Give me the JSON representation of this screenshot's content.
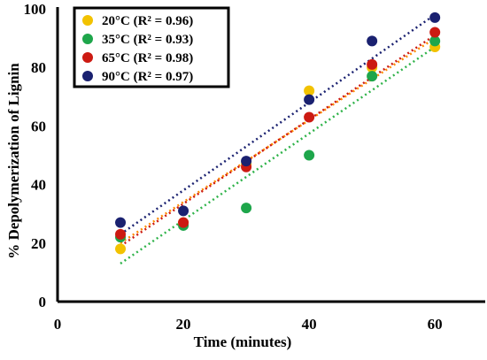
{
  "chart_data": {
    "type": "scatter",
    "xlabel": "Time (minutes)",
    "ylabel": "% Depolymerization of Lignin",
    "xlim": [
      0,
      68
    ],
    "ylim": [
      0,
      100
    ],
    "x_ticks": [
      "0",
      "20",
      "40",
      "60"
    ],
    "y_ticks": [
      "0",
      "20",
      "40",
      "60",
      "80",
      "100"
    ],
    "grid": false,
    "legend_position": "top-left",
    "x": [
      10,
      20,
      30,
      40,
      50,
      60
    ],
    "series": [
      {
        "legend_label": "20°C (R² = 0.96)",
        "color": "#f2c200",
        "values": [
          18,
          27,
          47,
          72,
          80,
          87
        ],
        "trendline": [
          [
            10,
            20
          ],
          [
            60,
            90
          ]
        ],
        "trend_color": "#ff8c00"
      },
      {
        "legend_label": "35°C (R² = 0.93)",
        "color": "#1ea64b",
        "values": [
          22,
          26,
          32,
          50,
          77,
          89
        ],
        "trendline": [
          [
            10,
            13
          ],
          [
            60,
            87
          ]
        ],
        "trend_color": "#2fb34a"
      },
      {
        "legend_label": "65°C (R² = 0.98)",
        "color": "#cc1a12",
        "values": [
          23,
          27,
          46,
          63,
          81,
          92
        ],
        "trendline": [
          [
            10,
            19
          ],
          [
            60,
            91
          ]
        ],
        "trend_color": "#cc1a12"
      },
      {
        "legend_label": "90°C (R² = 0.97)",
        "color": "#1a2170",
        "values": [
          27,
          31,
          48,
          69,
          89,
          97
        ],
        "trendline": [
          [
            10,
            23
          ],
          [
            60,
            98
          ]
        ],
        "trend_color": "#1a2170"
      }
    ]
  }
}
